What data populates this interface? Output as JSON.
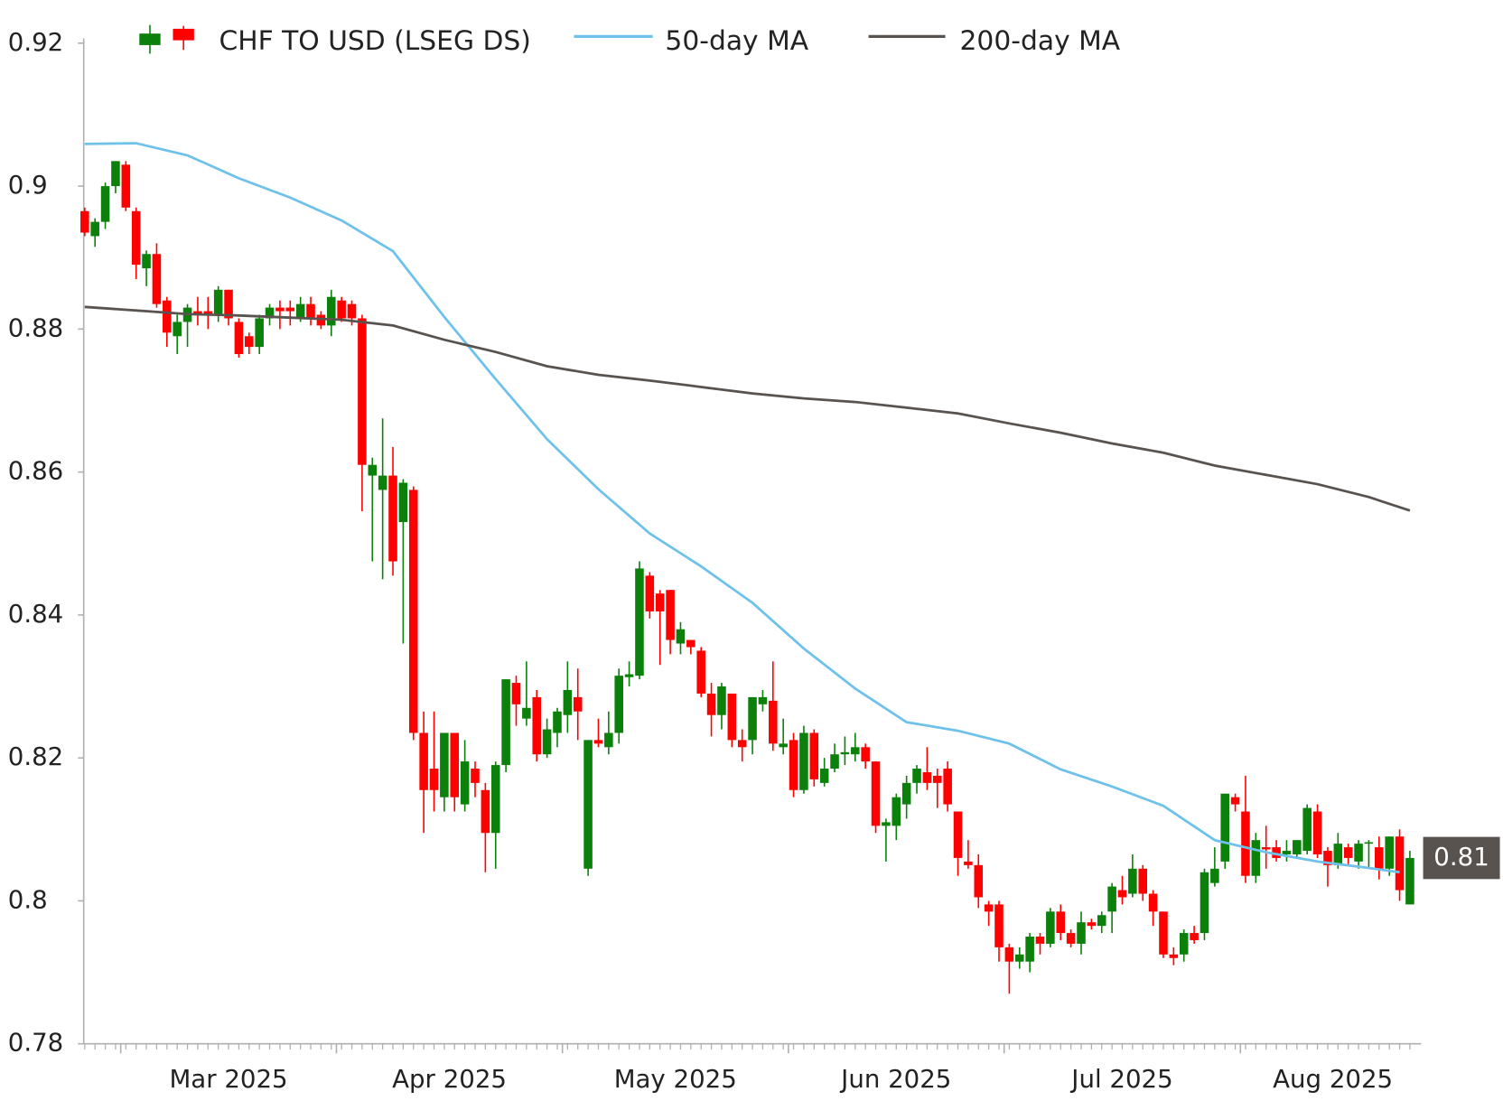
{
  "chart_data": {
    "type": "candlestick",
    "series": [
      {
        "name": "CHF TO USD (LSEG DS)",
        "type": "candlestick",
        "up_color": "#0b800b",
        "down_color": "#ff0000",
        "open": [
          0.8965,
          0.893,
          0.895,
          0.9,
          0.903,
          0.8965,
          0.8885,
          0.8905,
          0.884,
          0.879,
          0.881,
          0.8825,
          0.8825,
          0.882,
          0.8855,
          0.881,
          0.879,
          0.8775,
          0.8815,
          0.883,
          0.883,
          0.8815,
          0.8835,
          0.882,
          0.8805,
          0.884,
          0.8835,
          0.8815,
          0.8595,
          0.8575,
          0.8595,
          0.853,
          0.8575,
          0.8235,
          0.8185,
          0.8145,
          0.8235,
          0.8135,
          0.8185,
          0.8155,
          0.8095,
          0.819,
          0.8305,
          0.8255,
          0.8285,
          0.8205,
          0.8235,
          0.826,
          0.8285,
          0.8045,
          0.8225,
          0.8215,
          0.8235,
          0.8313,
          0.8315,
          0.8455,
          0.843,
          0.8435,
          0.836,
          0.8365,
          0.835,
          0.829,
          0.826,
          0.829,
          0.8225,
          0.8225,
          0.8275,
          0.828,
          0.8215,
          0.8225,
          0.8155,
          0.8235,
          0.8165,
          0.8185,
          0.8205,
          0.8205,
          0.8215,
          0.8195,
          0.8105,
          0.8105,
          0.8135,
          0.8165,
          0.818,
          0.8175,
          0.8185,
          0.8125,
          0.8055,
          0.805,
          0.7995,
          0.7995,
          0.7935,
          0.7915,
          0.7915,
          0.795,
          0.794,
          0.7985,
          0.7955,
          0.794,
          0.797,
          0.7965,
          0.7985,
          0.8015,
          0.801,
          0.8045,
          0.801,
          0.7985,
          0.7925,
          0.7925,
          0.7955,
          0.7955,
          0.8025,
          0.8055,
          0.8145,
          0.8125,
          0.8035,
          0.8075,
          0.8075,
          0.8065,
          0.8065,
          0.807,
          0.8125,
          0.807,
          0.805,
          0.8075,
          0.8055,
          0.808,
          0.8075,
          0.8045,
          0.809,
          0.7995
        ],
        "high": [
          0.897,
          0.8955,
          0.9005,
          0.9035,
          0.9035,
          0.897,
          0.891,
          0.892,
          0.8845,
          0.882,
          0.8835,
          0.8845,
          0.8845,
          0.886,
          0.8855,
          0.8815,
          0.8795,
          0.882,
          0.8835,
          0.884,
          0.884,
          0.8845,
          0.8845,
          0.8825,
          0.8855,
          0.8845,
          0.884,
          0.882,
          0.862,
          0.8675,
          0.8635,
          0.859,
          0.858,
          0.8265,
          0.8265,
          0.8235,
          0.8235,
          0.8225,
          0.8195,
          0.8165,
          0.8195,
          0.831,
          0.8315,
          0.8335,
          0.8295,
          0.8255,
          0.827,
          0.8335,
          0.8325,
          0.8225,
          0.8255,
          0.8265,
          0.8325,
          0.8335,
          0.8475,
          0.846,
          0.8435,
          0.8435,
          0.839,
          0.8365,
          0.8355,
          0.8305,
          0.8305,
          0.829,
          0.824,
          0.8285,
          0.8295,
          0.8335,
          0.8255,
          0.8235,
          0.8245,
          0.824,
          0.82,
          0.822,
          0.823,
          0.8235,
          0.822,
          0.8195,
          0.8115,
          0.815,
          0.8175,
          0.819,
          0.8215,
          0.8185,
          0.8195,
          0.8125,
          0.8085,
          0.8065,
          0.8,
          0.8,
          0.794,
          0.7935,
          0.7955,
          0.7955,
          0.799,
          0.7995,
          0.796,
          0.7985,
          0.7975,
          0.7985,
          0.8025,
          0.8035,
          0.8065,
          0.805,
          0.8015,
          0.7985,
          0.7935,
          0.796,
          0.7965,
          0.8045,
          0.8075,
          0.815,
          0.815,
          0.8175,
          0.8095,
          0.8105,
          0.8085,
          0.8085,
          0.8085,
          0.8135,
          0.8135,
          0.8075,
          0.8095,
          0.808,
          0.8085,
          0.8085,
          0.809,
          0.809,
          0.81,
          0.807
        ],
        "low": [
          0.893,
          0.8915,
          0.894,
          0.899,
          0.8965,
          0.887,
          0.886,
          0.883,
          0.8775,
          0.8765,
          0.8775,
          0.8805,
          0.88,
          0.881,
          0.8805,
          0.876,
          0.8765,
          0.8765,
          0.8805,
          0.88,
          0.8805,
          0.881,
          0.8805,
          0.88,
          0.879,
          0.881,
          0.8805,
          0.8545,
          0.8475,
          0.845,
          0.8455,
          0.836,
          0.8225,
          0.8095,
          0.8125,
          0.8125,
          0.8125,
          0.8125,
          0.8145,
          0.804,
          0.8045,
          0.818,
          0.8245,
          0.8245,
          0.8195,
          0.82,
          0.8215,
          0.8235,
          0.8225,
          0.8035,
          0.8215,
          0.8205,
          0.822,
          0.83,
          0.831,
          0.8395,
          0.833,
          0.8345,
          0.8345,
          0.8345,
          0.8285,
          0.823,
          0.824,
          0.8215,
          0.8195,
          0.8205,
          0.8265,
          0.821,
          0.8205,
          0.8145,
          0.815,
          0.816,
          0.816,
          0.818,
          0.819,
          0.8195,
          0.8185,
          0.8095,
          0.8055,
          0.8085,
          0.8115,
          0.815,
          0.8155,
          0.813,
          0.8125,
          0.8035,
          0.8045,
          0.799,
          0.7965,
          0.7915,
          0.787,
          0.7905,
          0.79,
          0.7925,
          0.7935,
          0.7945,
          0.7935,
          0.7925,
          0.796,
          0.7955,
          0.7955,
          0.7995,
          0.8005,
          0.8,
          0.7965,
          0.792,
          0.791,
          0.7915,
          0.794,
          0.7945,
          0.802,
          0.8045,
          0.8125,
          0.8025,
          0.8025,
          0.8045,
          0.8055,
          0.8055,
          0.806,
          0.8065,
          0.806,
          0.802,
          0.8045,
          0.805,
          0.8045,
          0.8045,
          0.803,
          0.8035,
          0.8,
          0.7995
        ],
        "close": [
          0.8935,
          0.895,
          0.9,
          0.9035,
          0.897,
          0.889,
          0.8905,
          0.8835,
          0.8795,
          0.881,
          0.883,
          0.882,
          0.882,
          0.8855,
          0.8815,
          0.8765,
          0.8775,
          0.8815,
          0.883,
          0.8825,
          0.8825,
          0.8835,
          0.8815,
          0.8805,
          0.8845,
          0.8815,
          0.8815,
          0.861,
          0.861,
          0.8595,
          0.8475,
          0.8585,
          0.8235,
          0.8155,
          0.8155,
          0.8235,
          0.8145,
          0.8195,
          0.8165,
          0.8095,
          0.819,
          0.831,
          0.8275,
          0.827,
          0.8205,
          0.824,
          0.8265,
          0.8295,
          0.8265,
          0.8225,
          0.822,
          0.8235,
          0.8315,
          0.8317,
          0.8465,
          0.8405,
          0.8405,
          0.8365,
          0.838,
          0.8355,
          0.829,
          0.826,
          0.83,
          0.8225,
          0.8215,
          0.8285,
          0.8285,
          0.822,
          0.822,
          0.8155,
          0.8235,
          0.817,
          0.8185,
          0.8205,
          0.8208,
          0.8215,
          0.8195,
          0.8105,
          0.811,
          0.8145,
          0.8165,
          0.8185,
          0.8165,
          0.8165,
          0.8135,
          0.806,
          0.805,
          0.8005,
          0.7985,
          0.7935,
          0.7915,
          0.7925,
          0.795,
          0.794,
          0.7985,
          0.7955,
          0.794,
          0.797,
          0.7965,
          0.798,
          0.802,
          0.8005,
          0.8045,
          0.801,
          0.7985,
          0.7925,
          0.792,
          0.7955,
          0.7945,
          0.804,
          0.8045,
          0.815,
          0.8135,
          0.8035,
          0.8085,
          0.8072,
          0.806,
          0.807,
          0.8085,
          0.813,
          0.8065,
          0.805,
          0.808,
          0.806,
          0.808,
          0.8082,
          0.8045,
          0.809,
          0.8015,
          0.806
        ]
      },
      {
        "name": "50-day MA",
        "type": "line",
        "color": "#6ec1ea",
        "x": [
          0,
          5,
          10,
          15,
          20,
          25,
          30,
          35,
          40,
          45,
          50,
          55,
          60,
          65,
          70,
          75,
          80,
          85,
          90,
          95,
          100,
          105,
          110,
          115,
          120,
          125,
          128
        ],
        "values": [
          0.9059,
          0.906,
          0.9043,
          0.9011,
          0.8984,
          0.8952,
          0.8909,
          0.8817,
          0.873,
          0.8646,
          0.8576,
          0.8514,
          0.8468,
          0.8417,
          0.8353,
          0.8297,
          0.825,
          0.8238,
          0.822,
          0.8184,
          0.816,
          0.8133,
          0.8085,
          0.8068,
          0.8055,
          0.8046,
          0.804
        ]
      },
      {
        "name": "200-day MA",
        "type": "line",
        "color": "#595350",
        "x": [
          0,
          5,
          10,
          15,
          20,
          25,
          30,
          35,
          40,
          45,
          50,
          55,
          60,
          65,
          70,
          75,
          80,
          85,
          90,
          95,
          100,
          105,
          110,
          115,
          120,
          125,
          129
        ],
        "values": [
          0.8831,
          0.8826,
          0.8821,
          0.8819,
          0.8816,
          0.8813,
          0.8805,
          0.8785,
          0.8768,
          0.8748,
          0.8736,
          0.8728,
          0.8719,
          0.871,
          0.8703,
          0.8698,
          0.869,
          0.8682,
          0.8668,
          0.8655,
          0.864,
          0.8627,
          0.8609,
          0.8596,
          0.8583,
          0.8565,
          0.8546
        ]
      }
    ],
    "ylim": [
      0.78,
      0.92
    ],
    "yticks": [
      0.78,
      0.8,
      0.82,
      0.84,
      0.86,
      0.88,
      0.9,
      0.92
    ],
    "xlim": [
      -0.1,
      130.1
    ],
    "xticks": [
      {
        "value": 14,
        "label": "Mar 2025"
      },
      {
        "value": 35.5,
        "label": "Apr 2025"
      },
      {
        "value": 57.5,
        "label": "May 2025"
      },
      {
        "value": 79,
        "label": "Jun 2025"
      },
      {
        "value": 101,
        "label": "Jul 2025"
      },
      {
        "value": 121.5,
        "label": "Aug 2025"
      }
    ],
    "month_starts": [
      3.5,
      24.5,
      46.5,
      68.5,
      89.5,
      112.5
    ],
    "last_price_label": "0.81",
    "last_price_color": "#595350"
  }
}
